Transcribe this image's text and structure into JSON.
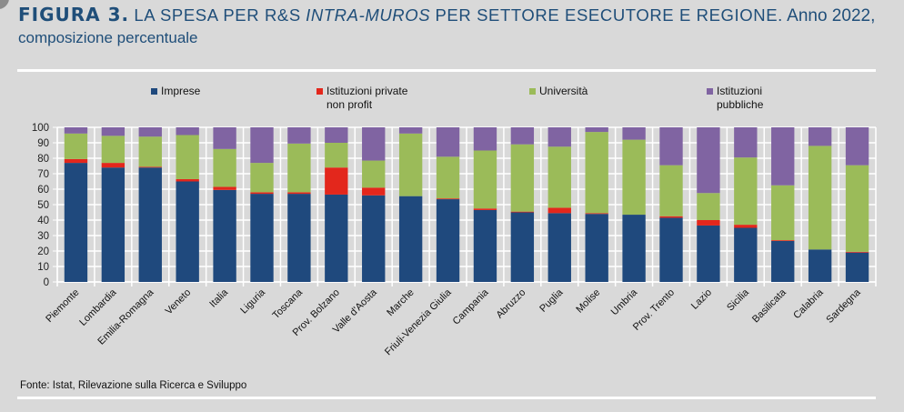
{
  "title": {
    "figure_label": "FIGURA 3.",
    "main": "LA SPESA PER R&S",
    "italic": "INTRA-MUROS",
    "main_rest": "PER SETTORE ESECUTORE E REGIONE.",
    "year": "Anno 2022,",
    "subtitle": "composizione percentuale"
  },
  "source": "Fonte: Istat, Rilevazione sulla Ricerca e Sviluppo",
  "chart_data": {
    "type": "bar",
    "stacked": true,
    "title": "LA SPESA PER R&S INTRA-MUROS PER SETTORE ESECUTORE E REGIONE. Anno 2022, composizione percentuale",
    "xlabel": "",
    "ylabel": "",
    "ylim": [
      0,
      100
    ],
    "yticks": [
      "0",
      "10",
      "20",
      "30",
      "40",
      "50",
      "60",
      "70",
      "80",
      "90",
      "100"
    ],
    "grid": true,
    "legend_position": "top",
    "categories": [
      "Piemonte",
      "Lombardia",
      "Emilia-Romagna",
      "Veneto",
      "Italia",
      "Liguria",
      "Toscana",
      "Prov. Bolzano",
      "Valle d'Aosta",
      "Marche",
      "Friuli-Venezia Giulia",
      "Campania",
      "Abruzzo",
      "Puglia",
      "Molise",
      "Umbria",
      "Prov. Trento",
      "Lazio",
      "Sicilia",
      "Basilicata",
      "Calabria",
      "Sardegna"
    ],
    "series": [
      {
        "name": "Imprese",
        "legend_lines": [
          "Imprese"
        ],
        "color": "#1f497d",
        "values": [
          77,
          74,
          74,
          65,
          59.5,
          57,
          57,
          56.5,
          56,
          55.5,
          53.5,
          46.5,
          45,
          44.5,
          44,
          43.5,
          41.5,
          36.5,
          35,
          26.5,
          21,
          19
        ]
      },
      {
        "name": "Istituzioni private non profit",
        "legend_lines": [
          "Istituzioni private",
          "non profit"
        ],
        "color": "#e3271c",
        "values": [
          2.5,
          3,
          0.5,
          1.5,
          2,
          1,
          1,
          17.5,
          5,
          0,
          0.5,
          1,
          0.5,
          3.5,
          0.5,
          0,
          1,
          3.5,
          2,
          0.5,
          0,
          0.5
        ]
      },
      {
        "name": "Università",
        "legend_lines": [
          "Università"
        ],
        "color": "#9bbb59",
        "values": [
          16.5,
          17.5,
          19.5,
          28.5,
          24.5,
          19,
          31.5,
          16,
          17.5,
          40.5,
          27,
          37.5,
          43.5,
          39.5,
          52.5,
          48.5,
          33,
          17.5,
          43.5,
          35.5,
          67,
          56
        ]
      },
      {
        "name": "Istituzioni pubbliche",
        "legend_lines": [
          "Istituzioni",
          "pubbliche"
        ],
        "color": "#8064a2",
        "values": [
          4,
          5.5,
          6,
          5,
          14,
          23,
          10.5,
          10,
          21.5,
          4,
          19,
          15,
          11,
          12.5,
          3,
          8,
          24.5,
          42.5,
          19.5,
          37.5,
          12,
          24.5
        ]
      }
    ]
  }
}
